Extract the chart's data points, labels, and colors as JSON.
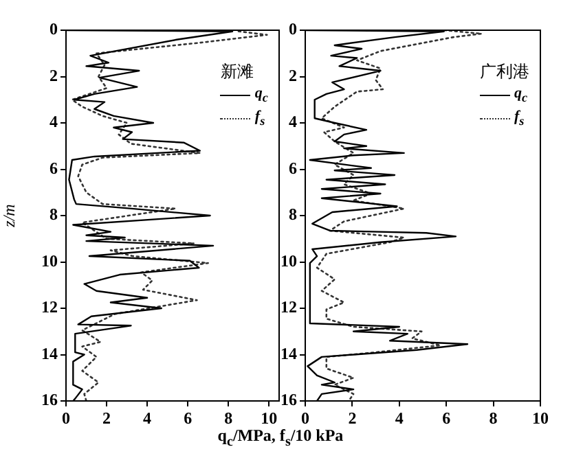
{
  "chart_data": [
    {
      "type": "line",
      "legend_title": "新滩",
      "legend": "top right",
      "xlabel": "q$_{c}$/MPa, f$_{s}$/10 kPa",
      "ylabel": "z/m",
      "xlim": [
        0,
        10.5
      ],
      "xticks": [
        0,
        2,
        4,
        6,
        8,
        10
      ],
      "ylim": [
        16,
        0
      ],
      "yticks": [
        0,
        2,
        4,
        6,
        8,
        10,
        12,
        14,
        16
      ],
      "grid": false,
      "marker": "none",
      "series": [
        {
          "name": "q$_{c}$",
          "color": "#000000",
          "line_style": "solid",
          "x": [
            0,
            8.2,
            5.5,
            1.2,
            2.1,
            1.0,
            3.6,
            1.65,
            3.5,
            1.4,
            0.4,
            1.9,
            1.4,
            2.35,
            4.3,
            2.35,
            3.25,
            2.8,
            5.8,
            6.6,
            1.4,
            0.3,
            0.15,
            0.4,
            0.5,
            3.25,
            7.1,
            0.35,
            2.2,
            1.0,
            2.9,
            1.0,
            7.25,
            1.15,
            6.1,
            6.55,
            2.65,
            0.9,
            1.5,
            4.0,
            2.2,
            4.7,
            1.25,
            0.6,
            3.2,
            0.45,
            0.45,
            0.9,
            0.35,
            0.35,
            0.8,
            0.45,
            0.35
          ],
          "values": [
            0,
            0.05,
            0.4,
            1.1,
            1.4,
            1.55,
            1.75,
            2.05,
            2.45,
            2.75,
            3.0,
            3.1,
            3.4,
            3.7,
            4.0,
            4.2,
            4.4,
            4.7,
            4.85,
            5.2,
            5.45,
            5.6,
            6.45,
            7.3,
            7.5,
            7.7,
            8.0,
            8.4,
            8.7,
            8.85,
            8.95,
            9.1,
            9.3,
            9.75,
            9.95,
            10.25,
            10.55,
            10.95,
            11.25,
            11.55,
            11.75,
            12.0,
            12.35,
            12.7,
            12.75,
            13.1,
            13.9,
            14.0,
            14.3,
            15.3,
            15.5,
            15.9,
            16
          ]
        },
        {
          "name": "f$_{s}$",
          "color": "#333333",
          "line_style": "dotted",
          "x": [
            8.5,
            9.9,
            6.5,
            1.5,
            1.9,
            1.6,
            2.0,
            0.3,
            0.8,
            1.8,
            3.0,
            2.6,
            3.2,
            6.6,
            1.8,
            0.8,
            0.6,
            1.0,
            1.8,
            5.4,
            0.8,
            2.0,
            6.3,
            2.2,
            3.3,
            7.0,
            3.7,
            4.25,
            3.8,
            6.45,
            2.4,
            0.8,
            1.7,
            0.8,
            1.5,
            0.8,
            1.6,
            0.9,
            1.0
          ],
          "values": [
            0.05,
            0.2,
            0.55,
            1.0,
            1.5,
            2.0,
            2.5,
            3.0,
            3.3,
            3.7,
            4.0,
            4.5,
            4.9,
            5.3,
            5.5,
            5.8,
            6.3,
            7.0,
            7.5,
            7.7,
            8.3,
            9.0,
            9.2,
            9.5,
            9.75,
            10.05,
            10.45,
            10.8,
            11.2,
            11.65,
            12.25,
            12.95,
            13.45,
            13.65,
            14.1,
            14.7,
            15.2,
            15.7,
            16
          ]
        }
      ]
    },
    {
      "type": "line",
      "legend_title": "广利港",
      "legend": "top right",
      "xlim": [
        0,
        10
      ],
      "xticks": [
        0,
        2,
        4,
        6,
        8,
        10
      ],
      "ylim": [
        16,
        0
      ],
      "yticks": [
        0,
        2,
        4,
        6,
        8,
        10,
        12,
        14,
        16
      ],
      "grid": false,
      "marker": "none",
      "series": [
        {
          "name": "q$_{c}$",
          "color": "#000000",
          "line_style": "solid",
          "x": [
            0,
            5.9,
            3.8,
            1.25,
            2.4,
            1.1,
            2.2,
            1.45,
            3.2,
            1.15,
            1.65,
            0.9,
            0.4,
            0.4,
            1.25,
            2.6,
            1.65,
            1.25,
            2.6,
            1.65,
            4.2,
            2.05,
            0.2,
            2.8,
            1.25,
            3.8,
            0.9,
            3.4,
            0.7,
            3.2,
            0.7,
            3.9,
            1.15,
            0.3,
            1.05,
            5.15,
            6.4,
            3.2,
            0.3,
            0.5,
            0.2,
            0.2,
            4.0,
            2.05,
            4.35,
            3.6,
            6.9,
            4.75,
            0.7,
            0.1,
            0.5,
            1.25,
            0.7,
            2.05,
            0.7,
            0.5
          ],
          "values": [
            0,
            0.05,
            0.3,
            0.65,
            0.8,
            1.1,
            1.2,
            1.55,
            1.75,
            2.25,
            2.55,
            2.75,
            3.0,
            3.8,
            4.0,
            4.3,
            4.5,
            4.8,
            5.0,
            5.1,
            5.3,
            5.4,
            5.6,
            5.95,
            6.05,
            6.25,
            6.45,
            6.65,
            6.85,
            7.05,
            7.25,
            7.6,
            7.85,
            8.35,
            8.65,
            8.75,
            8.9,
            9.15,
            9.45,
            9.75,
            10.05,
            12.65,
            12.8,
            13.0,
            13.1,
            13.4,
            13.55,
            13.8,
            14.1,
            14.5,
            14.9,
            15.2,
            15.3,
            15.5,
            15.7,
            16
          ]
        },
        {
          "name": "f$_{s}$",
          "color": "#333333",
          "line_style": "dotted",
          "x": [
            5.9,
            7.5,
            6.3,
            3.2,
            2.2,
            3.2,
            3.0,
            3.3,
            2.2,
            1.25,
            0.7,
            1.65,
            0.8,
            1.25,
            2.05,
            1.25,
            2.05,
            1.65,
            2.8,
            2.05,
            4.2,
            1.65,
            1.05,
            4.2,
            3.6,
            0.9,
            0.5,
            1.25,
            0.7,
            1.65,
            0.9,
            0.9,
            2.05,
            4.95,
            4.55,
            5.75,
            3.0,
            0.9,
            0.9,
            2.05,
            1.25,
            2.05,
            1.85
          ],
          "values": [
            0,
            0.15,
            0.3,
            0.9,
            1.3,
            1.65,
            2.15,
            2.55,
            2.65,
            3.3,
            3.8,
            4.2,
            4.4,
            4.8,
            5.3,
            5.8,
            6.25,
            6.65,
            7.05,
            7.35,
            7.7,
            8.25,
            8.65,
            8.95,
            9.15,
            9.65,
            10.25,
            10.75,
            11.25,
            11.75,
            12.05,
            12.45,
            12.8,
            13.0,
            13.3,
            13.6,
            13.9,
            14.1,
            14.6,
            15.0,
            15.3,
            15.7,
            16
          ]
        }
      ]
    }
  ]
}
